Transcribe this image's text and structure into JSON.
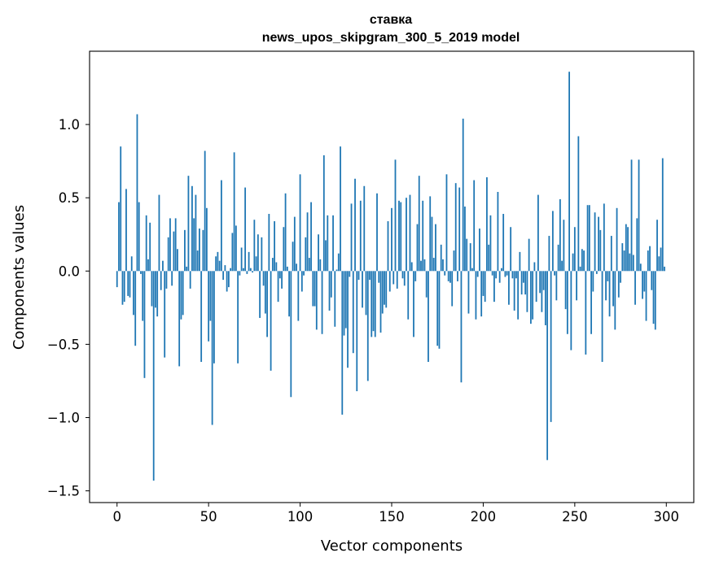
{
  "chart_data": {
    "type": "bar",
    "title": "ставка",
    "subtitle": "news_upos_skipgram_300_5_2019 model",
    "xlabel": "Vector components",
    "ylabel": "Components values",
    "xlim": [
      -15,
      315
    ],
    "ylim": [
      -1.58,
      1.5
    ],
    "xticks": [
      0,
      50,
      100,
      150,
      200,
      250,
      300
    ],
    "yticks": [
      -1.5,
      -1.0,
      -0.5,
      0.0,
      0.5,
      1.0
    ],
    "ytick_labels": [
      "−1.5",
      "−1.0",
      "−0.5",
      "0.0",
      "0.5",
      "1.0"
    ],
    "bar_color": "#1f77b4",
    "grid": false,
    "values": [
      -0.11,
      0.47,
      0.85,
      -0.23,
      -0.21,
      0.56,
      -0.17,
      -0.18,
      0.1,
      -0.3,
      -0.51,
      1.07,
      0.47,
      -0.02,
      -0.34,
      -0.73,
      0.38,
      0.08,
      0.33,
      -0.24,
      -1.43,
      -0.25,
      -0.31,
      0.52,
      -0.13,
      0.07,
      -0.59,
      -0.12,
      0.23,
      0.36,
      -0.1,
      0.27,
      0.36,
      0.15,
      -0.65,
      -0.33,
      -0.3,
      0.28,
      0.03,
      0.65,
      -0.12,
      0.58,
      0.36,
      0.52,
      0.14,
      0.29,
      -0.62,
      0.28,
      0.82,
      0.43,
      -0.48,
      -0.34,
      -1.05,
      -0.63,
      0.1,
      0.13,
      0.07,
      0.62,
      -0.06,
      0.04,
      -0.14,
      -0.11,
      0.02,
      0.26,
      0.81,
      0.31,
      -0.63,
      -0.03,
      0.16,
      0.02,
      0.57,
      -0.02,
      0.13,
      0.02,
      -0.01,
      0.35,
      0.1,
      0.25,
      -0.32,
      0.23,
      -0.1,
      -0.29,
      -0.45,
      0.39,
      -0.68,
      0.09,
      0.34,
      0.06,
      -0.21,
      -0.05,
      -0.12,
      0.3,
      0.53,
      0.03,
      -0.31,
      -0.86,
      0.2,
      0.37,
      0.05,
      -0.34,
      0.66,
      -0.14,
      -0.03,
      0.23,
      0.4,
      0.09,
      0.47,
      -0.24,
      -0.24,
      -0.4,
      0.25,
      0.08,
      -0.43,
      0.79,
      0.21,
      0.38,
      -0.27,
      -0.18,
      0.38,
      -0.38,
      0.01,
      0.12,
      0.85,
      -0.98,
      -0.44,
      -0.39,
      -0.66,
      -0.04,
      0.46,
      -0.56,
      0.63,
      -0.82,
      -0.06,
      0.48,
      -0.25,
      0.58,
      -0.3,
      -0.75,
      -0.06,
      -0.45,
      -0.41,
      -0.45,
      0.53,
      -0.08,
      -0.42,
      -0.29,
      -0.23,
      -0.25,
      0.34,
      -0.14,
      0.43,
      -0.09,
      0.76,
      -0.12,
      0.48,
      0.47,
      -0.05,
      -0.1,
      0.5,
      -0.33,
      0.52,
      0.06,
      -0.45,
      -0.07,
      0.32,
      0.65,
      0.07,
      0.48,
      0.08,
      -0.18,
      -0.62,
      0.51,
      0.37,
      0.09,
      0.32,
      -0.51,
      -0.53,
      0.18,
      0.08,
      -0.03,
      0.66,
      -0.07,
      -0.08,
      -0.24,
      0.14,
      0.6,
      -0.07,
      0.57,
      -0.76,
      1.04,
      0.44,
      0.22,
      -0.29,
      0.19,
      0.02,
      0.62,
      -0.33,
      -0.04,
      0.29,
      -0.31,
      -0.17,
      -0.21,
      0.64,
      0.18,
      0.38,
      -0.03,
      -0.21,
      -0.05,
      0.54,
      -0.08,
      0.02,
      0.39,
      -0.04,
      -0.03,
      -0.23,
      0.3,
      -0.05,
      -0.27,
      -0.05,
      -0.33,
      0.13,
      -0.16,
      -0.08,
      -0.16,
      -0.28,
      0.22,
      -0.36,
      -0.33,
      0.06,
      -0.21,
      0.52,
      -0.15,
      -0.28,
      -0.13,
      -0.37,
      -1.29,
      0.24,
      -1.03,
      0.41,
      -0.03,
      -0.2,
      0.18,
      0.49,
      0.07,
      0.35,
      -0.26,
      -0.43,
      1.36,
      -0.54,
      0.12,
      0.3,
      -0.2,
      0.92,
      0.03,
      0.15,
      0.14,
      -0.57,
      0.45,
      0.45,
      -0.43,
      -0.14,
      0.4,
      -0.02,
      0.37,
      0.28,
      -0.62,
      0.46,
      -0.2,
      -0.07,
      -0.31,
      0.24,
      -0.24,
      -0.4,
      0.43,
      -0.18,
      -0.08,
      0.19,
      0.14,
      0.32,
      0.3,
      0.12,
      0.76,
      0.11,
      -0.23,
      0.36,
      0.76,
      0.05,
      -0.19,
      -0.14,
      -0.34,
      0.14,
      0.17,
      -0.13,
      -0.36,
      -0.4,
      0.35,
      0.1,
      0.16,
      0.77,
      0.03
    ]
  }
}
